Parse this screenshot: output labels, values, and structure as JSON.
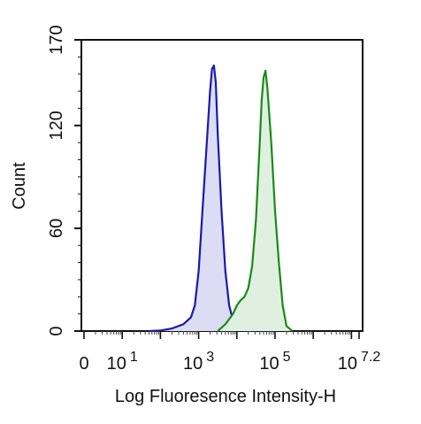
{
  "chart_data": {
    "type": "area",
    "title": "",
    "xlabel": "Log Fluoresence Intensity-H",
    "ylabel": "Count",
    "x_scale": "log",
    "xlim": [
      0,
      7.2
    ],
    "ylim": [
      0,
      170
    ],
    "y_ticks": [
      0,
      60,
      120,
      170
    ],
    "x_tick_labels": [
      {
        "base": "0",
        "exp": ""
      },
      {
        "base": "10",
        "exp": "1"
      },
      {
        "base": "10",
        "exp": "3"
      },
      {
        "base": "10",
        "exp": "5"
      },
      {
        "base": "10",
        "exp": "7.2"
      }
    ],
    "series": [
      {
        "color": "#1a1aa8",
        "fill": "#dcdcf5",
        "points": [
          [
            1.7,
            0
          ],
          [
            2.0,
            0.3
          ],
          [
            2.3,
            1.5
          ],
          [
            2.6,
            4
          ],
          [
            2.8,
            8
          ],
          [
            2.9,
            15
          ],
          [
            3.0,
            35
          ],
          [
            3.1,
            70
          ],
          [
            3.2,
            105
          ],
          [
            3.3,
            140
          ],
          [
            3.35,
            153
          ],
          [
            3.4,
            155
          ],
          [
            3.45,
            145
          ],
          [
            3.5,
            115
          ],
          [
            3.6,
            70
          ],
          [
            3.7,
            35
          ],
          [
            3.8,
            15
          ],
          [
            3.9,
            6
          ],
          [
            4.0,
            2
          ],
          [
            4.2,
            0.5
          ],
          [
            4.4,
            0
          ]
        ]
      },
      {
        "color": "#1a8a1a",
        "fill": "#e0f0e0",
        "points": [
          [
            3.5,
            0
          ],
          [
            3.7,
            4
          ],
          [
            3.9,
            10
          ],
          [
            4.0,
            15
          ],
          [
            4.1,
            18
          ],
          [
            4.2,
            20
          ],
          [
            4.3,
            25
          ],
          [
            4.4,
            38
          ],
          [
            4.5,
            65
          ],
          [
            4.6,
            110
          ],
          [
            4.65,
            135
          ],
          [
            4.7,
            148
          ],
          [
            4.75,
            152
          ],
          [
            4.8,
            142
          ],
          [
            4.9,
            110
          ],
          [
            5.0,
            70
          ],
          [
            5.1,
            40
          ],
          [
            5.2,
            15
          ],
          [
            5.3,
            3
          ],
          [
            5.45,
            0
          ]
        ]
      }
    ]
  }
}
